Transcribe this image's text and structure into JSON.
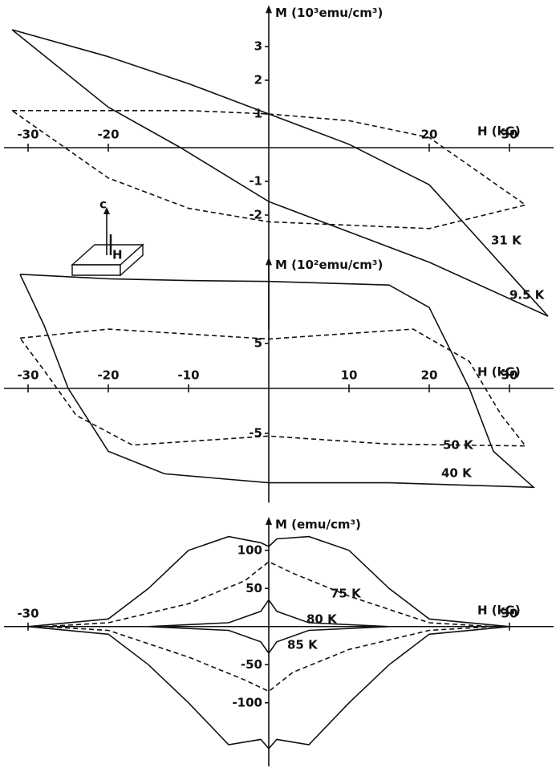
{
  "chart_data": [
    {
      "type": "line",
      "ylabel": "M (10³emu/cm³)",
      "xlabel": "H (kG)",
      "xlim": [
        -32,
        35
      ],
      "ylim": [
        -5.2,
        3.8
      ],
      "xticks": [
        -30,
        -20,
        20,
        30
      ],
      "yticks": [
        -2,
        -1,
        1,
        2,
        3
      ],
      "series": [
        {
          "name": "9.5 K",
          "color": "#111",
          "style": "solid",
          "x": [
            -32,
            -20,
            -10,
            0,
            10,
            20,
            34.8,
            20,
            10,
            0,
            -11,
            -20,
            -32
          ],
          "values": [
            3.5,
            2.7,
            1.9,
            1.0,
            0.1,
            -1.1,
            -5.0,
            -3.4,
            -2.5,
            -1.6,
            0,
            1.2,
            3.5
          ]
        },
        {
          "name": "31 K",
          "color": "#111",
          "style": "dashed",
          "x": [
            -32,
            -20,
            -10,
            0,
            10,
            20,
            32,
            20,
            10,
            0,
            -10,
            -20,
            -32
          ],
          "values": [
            1.1,
            1.1,
            1.1,
            1.0,
            0.8,
            0.3,
            -1.7,
            -2.4,
            -2.3,
            -2.2,
            -1.8,
            -0.9,
            1.1
          ]
        }
      ]
    },
    {
      "type": "line",
      "ylabel": "M (10²emu/cm³)",
      "xlabel": "H (kG)",
      "xlim": [
        -32,
        35
      ],
      "ylim": [
        -12,
        13
      ],
      "xticks": [
        -30,
        -20,
        -10,
        10,
        20,
        30
      ],
      "yticks": [
        -5,
        5
      ],
      "series": [
        {
          "name": "40 K",
          "color": "#111",
          "style": "solid",
          "x": [
            -31,
            -20,
            -10,
            0,
            15,
            20,
            25,
            28,
            33,
            15,
            0,
            -13,
            -20,
            -25,
            -28,
            -31
          ],
          "values": [
            12.7,
            12.2,
            12.0,
            11.9,
            11.5,
            9,
            0,
            -7,
            -11,
            -10.5,
            -10.5,
            -9.5,
            -7,
            0,
            7,
            12.7
          ]
        },
        {
          "name": "50 K",
          "color": "#111",
          "style": "dashed",
          "x": [
            -31,
            -20,
            0,
            18,
            25,
            29,
            32,
            15,
            0,
            -17,
            -24,
            -28,
            -31
          ],
          "values": [
            5.6,
            6.6,
            5.5,
            6.6,
            3,
            -3,
            -6.4,
            -6.2,
            -5.3,
            -6.3,
            -3,
            2,
            5.6
          ]
        }
      ]
    },
    {
      "type": "line",
      "ylabel": "M (emu/cm³)",
      "xlabel": "H (kG)",
      "xlim": [
        -32,
        35
      ],
      "ylim": [
        -175,
        125
      ],
      "xticks": [
        -30,
        30
      ],
      "yticks": [
        -100,
        -50,
        50,
        100
      ],
      "series": [
        {
          "name": "75 K",
          "color": "#111",
          "style": "solid",
          "x": [
            -30,
            -20,
            -15,
            -10,
            -5,
            -1,
            0,
            1,
            5,
            10,
            15,
            20,
            30,
            20,
            15,
            10,
            5,
            1,
            0,
            -1,
            -5,
            -10,
            -15,
            -20,
            -30
          ],
          "values": [
            0,
            10,
            50,
            100,
            118,
            110,
            105,
            115,
            118,
            100,
            50,
            10,
            0,
            -10,
            -50,
            -100,
            -155,
            -148,
            -160,
            -148,
            -155,
            -100,
            -50,
            -10,
            0
          ]
        },
        {
          "name": "80 K",
          "color": "#111",
          "style": "dashed",
          "x": [
            -28,
            -20,
            -10,
            -3,
            0,
            3,
            10,
            20,
            28,
            20,
            10,
            3,
            0,
            -3,
            -10,
            -20,
            -28
          ],
          "values": [
            0,
            5,
            30,
            60,
            85,
            70,
            40,
            5,
            0,
            -5,
            -30,
            -60,
            -85,
            -70,
            -40,
            -5,
            0
          ]
        },
        {
          "name": "85 K",
          "color": "#111",
          "style": "solid",
          "x": [
            -15,
            -5,
            -1,
            0,
            1,
            5,
            15,
            5,
            1,
            0,
            -1,
            -5,
            -15
          ],
          "values": [
            0,
            5,
            20,
            35,
            20,
            5,
            0,
            -5,
            -20,
            -35,
            -20,
            -5,
            0
          ]
        }
      ]
    }
  ],
  "inset": {
    "axis_label": "c",
    "field_label": "H"
  }
}
